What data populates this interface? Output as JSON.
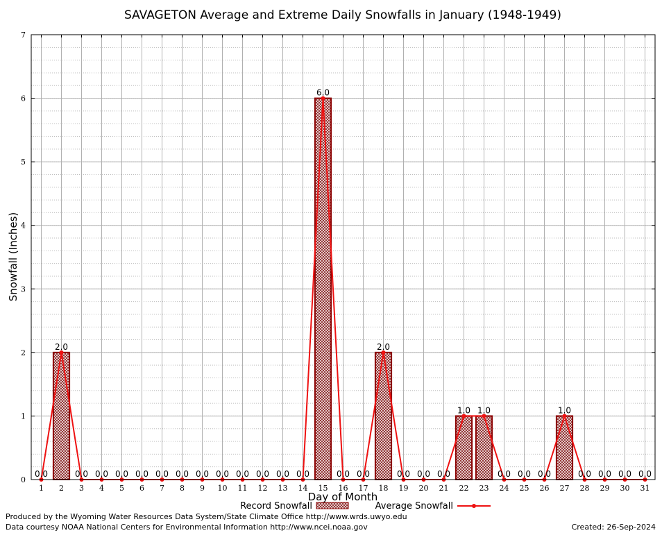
{
  "chart_data": {
    "type": "bar",
    "title": "SAVAGETON Average and Extreme Daily Snowfalls in January (1948-1949)",
    "xlabel": "Day of Month",
    "ylabel": "Snowfall (Inches)",
    "ylim": [
      0,
      7
    ],
    "yticks": [
      "0",
      "1",
      "2",
      "3",
      "4",
      "5",
      "6",
      "7"
    ],
    "categories": [
      "1",
      "2",
      "3",
      "4",
      "5",
      "6",
      "7",
      "8",
      "9",
      "10",
      "11",
      "12",
      "13",
      "14",
      "15",
      "16",
      "17",
      "18",
      "19",
      "20",
      "21",
      "22",
      "23",
      "24",
      "25",
      "26",
      "27",
      "28",
      "29",
      "30",
      "31"
    ],
    "series": [
      {
        "name": "Record Snowfall",
        "type": "bar",
        "color": "#8b0000",
        "values": [
          0,
          2,
          0,
          0,
          0,
          0,
          0,
          0,
          0,
          0,
          0,
          0,
          0,
          0,
          6,
          0,
          0,
          2,
          0,
          0,
          0,
          1,
          1,
          0,
          0,
          0,
          1,
          0,
          0,
          0,
          0
        ]
      },
      {
        "name": "Average Snowfall",
        "type": "line",
        "color": "#ee1111",
        "values": [
          0,
          2,
          0,
          0,
          0,
          0,
          0,
          0,
          0,
          0,
          0,
          0,
          0,
          0,
          6,
          0,
          0,
          2,
          0,
          0,
          0,
          1,
          1,
          0,
          0,
          0,
          1,
          0,
          0,
          0,
          0
        ]
      }
    ],
    "value_labels": [
      "0.0",
      "2.0",
      "0.0",
      "0.0",
      "0.0",
      "0.0",
      "0.0",
      "0.0",
      "0.0",
      "0.0",
      "0.0",
      "0.0",
      "0.0",
      "0.0",
      "6.0",
      "0.0",
      "0.0",
      "2.0",
      "0.0",
      "0.0",
      "0.0",
      "1.0",
      "1.0",
      "0.0",
      "0.0",
      "0.0",
      "1.0",
      "0.0",
      "0.0",
      "0.0",
      "0.0"
    ],
    "grid": true,
    "legend_position": "bottom-center"
  },
  "footer": {
    "line1": "Produced by the Wyoming Water Resources Data System/State Climate Office http://www.wrds.uwyo.edu",
    "line2": "Data courtesy NOAA National Centers for Environmental Information http://www.ncei.noaa.gov",
    "created": "Created:  26-Sep-2024"
  }
}
